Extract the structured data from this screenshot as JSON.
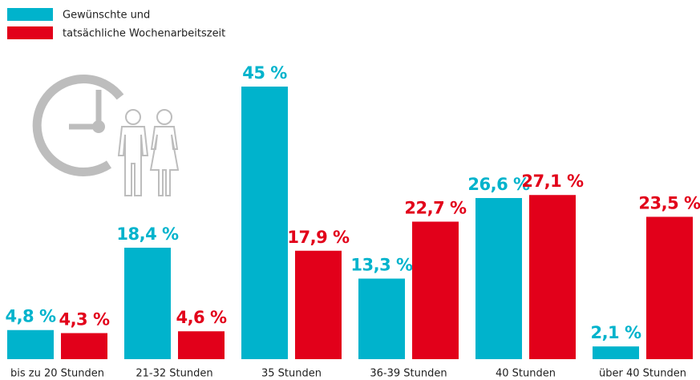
{
  "chart_data": {
    "type": "bar",
    "categories": [
      "bis zu 20 Stunden",
      "21-32 Stunden",
      "35 Stunden",
      "36-39 Stunden",
      "40 Stunden",
      "über 40 Stunden"
    ],
    "series": [
      {
        "name": "Gewünschte und",
        "color": "#00b3cc",
        "values": [
          4.8,
          18.4,
          45,
          13.3,
          26.6,
          2.1
        ],
        "value_labels": [
          "4,8 %",
          "18,4 %",
          "45 %",
          "13,3 %",
          "26,6 %",
          "2,1 %"
        ]
      },
      {
        "name": "tatsächliche Wochenarbeitszeit",
        "color": "#e2001a",
        "values": [
          4.3,
          4.6,
          17.9,
          22.7,
          27.1,
          23.5
        ],
        "value_labels": [
          "4,3 %",
          "4,6 %",
          "17,9 %",
          "22,7 %",
          "27,1 %",
          "23,5 %"
        ]
      }
    ]
  }
}
